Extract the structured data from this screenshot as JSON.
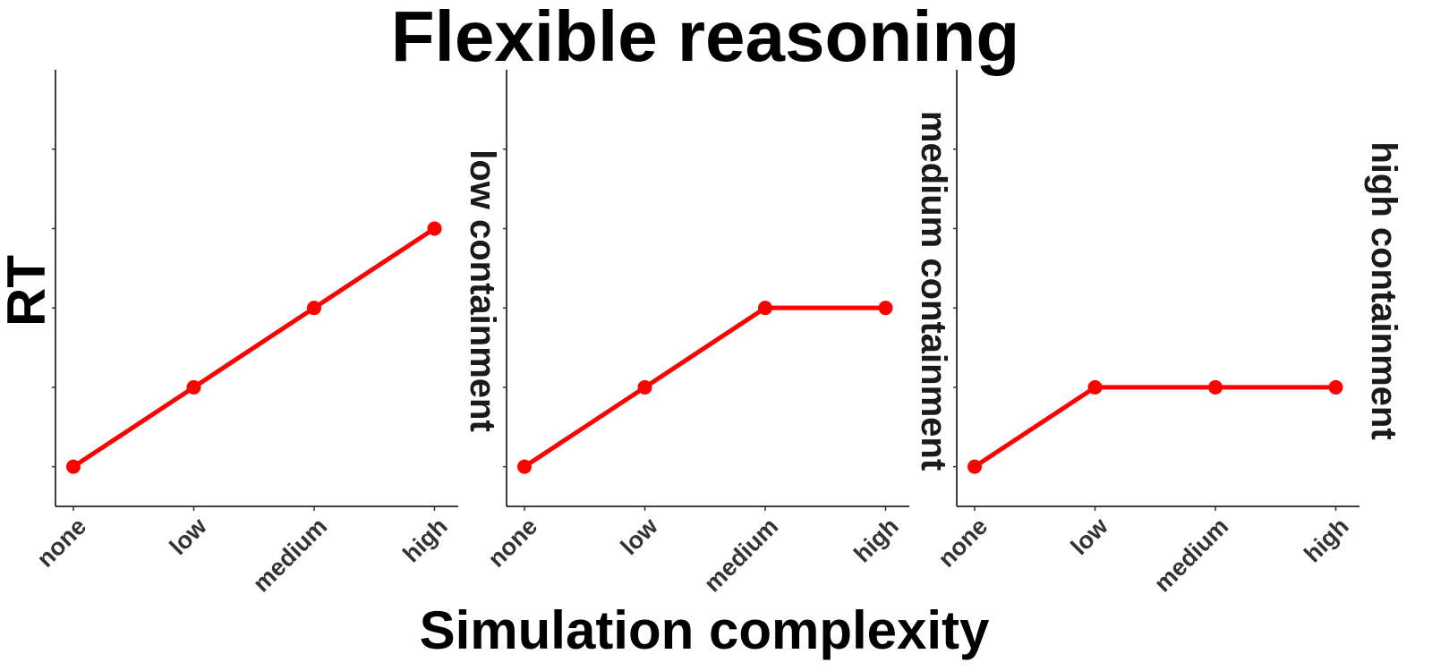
{
  "colors": {
    "series": "#ff0000",
    "text": "#000000",
    "tick_text": "#333333"
  },
  "chart_data": {
    "type": "line",
    "title": "Flexible reasoning",
    "xlabel": "Simulation complexity",
    "ylabel": "RT",
    "categories": [
      "none",
      "low",
      "medium",
      "high"
    ],
    "ylim": [
      0.5,
      6
    ],
    "y_tick_labels_shown": false,
    "grid": false,
    "legend": "none",
    "panels": [
      {
        "label": "low containment",
        "values": [
          1,
          2,
          3,
          4
        ]
      },
      {
        "label": "medium containment",
        "values": [
          1,
          2,
          3,
          3
        ]
      },
      {
        "label": "high containment",
        "values": [
          1,
          2,
          2,
          2
        ]
      }
    ]
  }
}
